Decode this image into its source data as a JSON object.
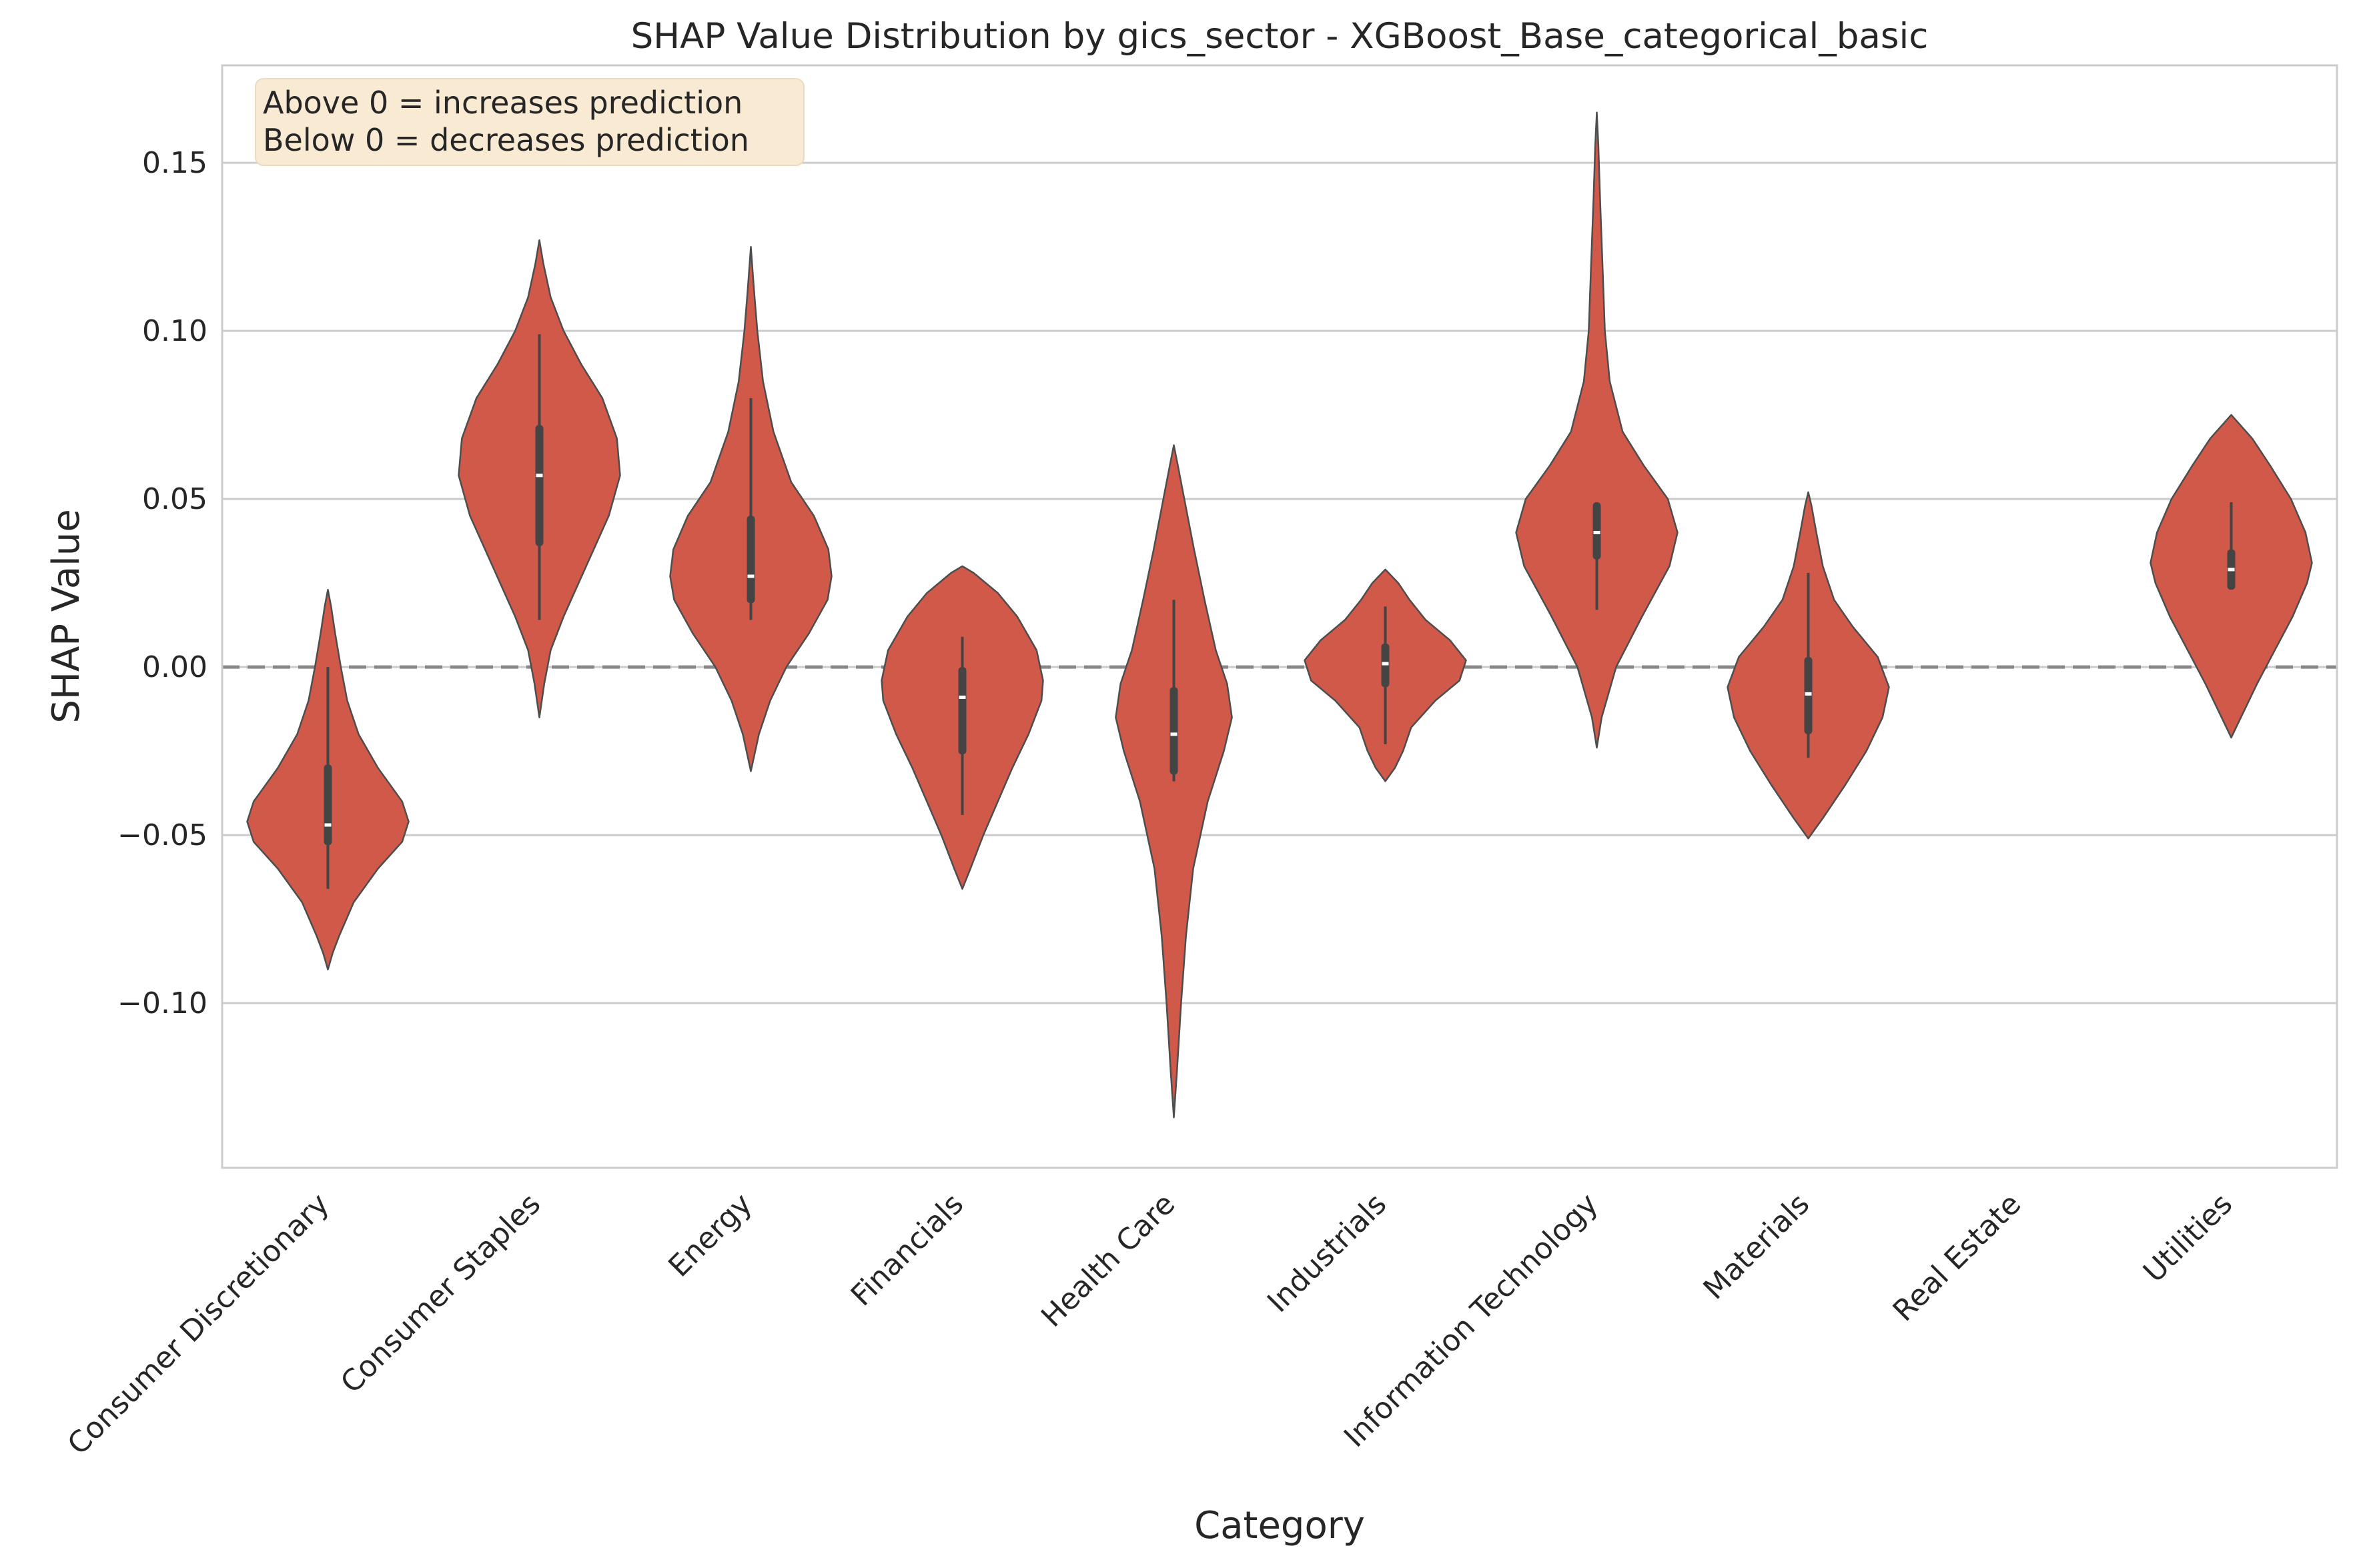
{
  "chart_data": {
    "type": "violin",
    "title": "SHAP Value Distribution by gics_sector - XGBoost_Base_categorical_basic",
    "xlabel": "Category",
    "ylabel": "SHAP Value",
    "ylim": [
      -0.149,
      0.179
    ],
    "yticks": [
      -0.1,
      -0.05,
      0.0,
      0.05,
      0.1,
      0.15
    ],
    "ytick_labels": [
      "−0.10",
      "−0.05",
      "0.00",
      "0.05",
      "0.10",
      "0.15"
    ],
    "grid": "horizontal",
    "reference_line": 0.0,
    "annotation": [
      "Above 0 = increases prediction",
      "Below 0 = decreases prediction"
    ],
    "colors": {
      "violin_fill": "#d0594a",
      "violin_edge": "#4d4d4d",
      "box": "#444444",
      "median": "#ffffff",
      "annotation_bg": "#f8ead3",
      "grid": "#cccccc",
      "reference_line": "#888888"
    },
    "categories": [
      "Consumer Discretionary",
      "Consumer Staples",
      "Energy",
      "Financials",
      "Health Care",
      "Industrials",
      "Information Technology",
      "Materials",
      "Real Estate",
      "Utilities"
    ],
    "violins": [
      {
        "category": "Consumer Discretionary",
        "min": -0.09,
        "max": 0.023,
        "whisker_low": -0.066,
        "whisker_high": 0.0,
        "q1": -0.053,
        "median": -0.047,
        "q3": -0.029,
        "profile": [
          [
            -0.09,
            0.0
          ],
          [
            -0.085,
            0.06
          ],
          [
            -0.08,
            0.14
          ],
          [
            -0.07,
            0.32
          ],
          [
            -0.06,
            0.62
          ],
          [
            -0.052,
            0.92
          ],
          [
            -0.046,
            1.0
          ],
          [
            -0.04,
            0.92
          ],
          [
            -0.03,
            0.62
          ],
          [
            -0.02,
            0.38
          ],
          [
            -0.01,
            0.24
          ],
          [
            0.0,
            0.16
          ],
          [
            0.01,
            0.09
          ],
          [
            0.018,
            0.04
          ],
          [
            0.023,
            0.0
          ]
        ]
      },
      {
        "category": "Consumer Staples",
        "min": -0.015,
        "max": 0.127,
        "whisker_low": 0.014,
        "whisker_high": 0.099,
        "q1": 0.036,
        "median": 0.057,
        "q3": 0.072,
        "profile": [
          [
            -0.015,
            0.0
          ],
          [
            -0.005,
            0.06
          ],
          [
            0.005,
            0.14
          ],
          [
            0.015,
            0.3
          ],
          [
            0.03,
            0.58
          ],
          [
            0.045,
            0.86
          ],
          [
            0.057,
            1.0
          ],
          [
            0.068,
            0.96
          ],
          [
            0.08,
            0.78
          ],
          [
            0.09,
            0.52
          ],
          [
            0.1,
            0.3
          ],
          [
            0.11,
            0.14
          ],
          [
            0.12,
            0.05
          ],
          [
            0.127,
            0.0
          ]
        ]
      },
      {
        "category": "Energy",
        "min": -0.031,
        "max": 0.125,
        "whisker_low": 0.014,
        "whisker_high": 0.08,
        "q1": 0.019,
        "median": 0.027,
        "q3": 0.045,
        "profile": [
          [
            -0.031,
            0.0
          ],
          [
            -0.02,
            0.1
          ],
          [
            -0.01,
            0.24
          ],
          [
            0.0,
            0.44
          ],
          [
            0.01,
            0.72
          ],
          [
            0.02,
            0.95
          ],
          [
            0.027,
            1.0
          ],
          [
            0.035,
            0.96
          ],
          [
            0.045,
            0.78
          ],
          [
            0.055,
            0.5
          ],
          [
            0.07,
            0.28
          ],
          [
            0.085,
            0.15
          ],
          [
            0.1,
            0.08
          ],
          [
            0.112,
            0.04
          ],
          [
            0.125,
            0.0
          ]
        ]
      },
      {
        "category": "Financials",
        "min": -0.066,
        "max": 0.03,
        "whisker_low": -0.044,
        "whisker_high": 0.009,
        "q1": -0.026,
        "median": -0.009,
        "q3": 0.0,
        "profile": [
          [
            -0.066,
            0.0
          ],
          [
            -0.06,
            0.1
          ],
          [
            -0.05,
            0.26
          ],
          [
            -0.04,
            0.44
          ],
          [
            -0.03,
            0.62
          ],
          [
            -0.02,
            0.82
          ],
          [
            -0.01,
            0.98
          ],
          [
            -0.004,
            1.0
          ],
          [
            0.005,
            0.92
          ],
          [
            0.015,
            0.68
          ],
          [
            0.022,
            0.44
          ],
          [
            0.028,
            0.14
          ],
          [
            0.03,
            0.0
          ]
        ]
      },
      {
        "category": "Health Care",
        "min": -0.134,
        "max": 0.066,
        "whisker_low": -0.034,
        "whisker_high": 0.02,
        "q1": -0.032,
        "median": -0.02,
        "q3": -0.006,
        "profile": [
          [
            -0.134,
            0.0
          ],
          [
            -0.12,
            0.04
          ],
          [
            -0.1,
            0.09
          ],
          [
            -0.08,
            0.15
          ],
          [
            -0.06,
            0.24
          ],
          [
            -0.04,
            0.42
          ],
          [
            -0.025,
            0.62
          ],
          [
            -0.015,
            0.72
          ],
          [
            -0.005,
            0.66
          ],
          [
            0.005,
            0.52
          ],
          [
            0.02,
            0.38
          ],
          [
            0.035,
            0.25
          ],
          [
            0.05,
            0.13
          ],
          [
            0.06,
            0.05
          ],
          [
            0.066,
            0.0
          ]
        ]
      },
      {
        "category": "Industrials",
        "min": -0.034,
        "max": 0.029,
        "whisker_low": -0.023,
        "whisker_high": 0.018,
        "q1": -0.006,
        "median": 0.001,
        "q3": 0.007,
        "profile": [
          [
            -0.034,
            0.0
          ],
          [
            -0.03,
            0.12
          ],
          [
            -0.025,
            0.22
          ],
          [
            -0.018,
            0.32
          ],
          [
            -0.01,
            0.62
          ],
          [
            -0.004,
            0.92
          ],
          [
            0.002,
            1.0
          ],
          [
            0.008,
            0.8
          ],
          [
            0.014,
            0.5
          ],
          [
            0.02,
            0.3
          ],
          [
            0.025,
            0.16
          ],
          [
            0.029,
            0.0
          ]
        ]
      },
      {
        "category": "Information Technology",
        "min": -0.024,
        "max": 0.165,
        "whisker_low": 0.017,
        "whisker_high": 0.049,
        "q1": 0.032,
        "median": 0.04,
        "q3": 0.049,
        "profile": [
          [
            -0.024,
            0.0
          ],
          [
            -0.015,
            0.06
          ],
          [
            0.0,
            0.24
          ],
          [
            0.015,
            0.56
          ],
          [
            0.03,
            0.9
          ],
          [
            0.04,
            1.0
          ],
          [
            0.05,
            0.88
          ],
          [
            0.06,
            0.58
          ],
          [
            0.07,
            0.32
          ],
          [
            0.085,
            0.16
          ],
          [
            0.1,
            0.1
          ],
          [
            0.12,
            0.07
          ],
          [
            0.14,
            0.04
          ],
          [
            0.155,
            0.02
          ],
          [
            0.165,
            0.0
          ]
        ]
      },
      {
        "category": "Materials",
        "min": -0.051,
        "max": 0.052,
        "whisker_low": -0.027,
        "whisker_high": 0.028,
        "q1": -0.02,
        "median": -0.008,
        "q3": 0.003,
        "profile": [
          [
            -0.051,
            0.0
          ],
          [
            -0.045,
            0.18
          ],
          [
            -0.035,
            0.46
          ],
          [
            -0.025,
            0.72
          ],
          [
            -0.015,
            0.92
          ],
          [
            -0.006,
            1.0
          ],
          [
            0.003,
            0.86
          ],
          [
            0.012,
            0.55
          ],
          [
            0.02,
            0.32
          ],
          [
            0.03,
            0.18
          ],
          [
            0.04,
            0.1
          ],
          [
            0.048,
            0.04
          ],
          [
            0.052,
            0.0
          ]
        ]
      },
      {
        "category": "Real Estate",
        "min": null,
        "max": null,
        "whisker_low": null,
        "whisker_high": null,
        "q1": null,
        "median": null,
        "q3": null,
        "profile": []
      },
      {
        "category": "Utilities",
        "min": -0.021,
        "max": 0.075,
        "whisker_low": 0.023,
        "whisker_high": 0.049,
        "q1": 0.023,
        "median": 0.029,
        "q3": 0.035,
        "profile": [
          [
            -0.021,
            0.0
          ],
          [
            -0.015,
            0.12
          ],
          [
            -0.005,
            0.32
          ],
          [
            0.005,
            0.54
          ],
          [
            0.015,
            0.76
          ],
          [
            0.025,
            0.94
          ],
          [
            0.031,
            1.0
          ],
          [
            0.04,
            0.92
          ],
          [
            0.05,
            0.74
          ],
          [
            0.06,
            0.48
          ],
          [
            0.068,
            0.26
          ],
          [
            0.075,
            0.0
          ]
        ]
      }
    ]
  }
}
